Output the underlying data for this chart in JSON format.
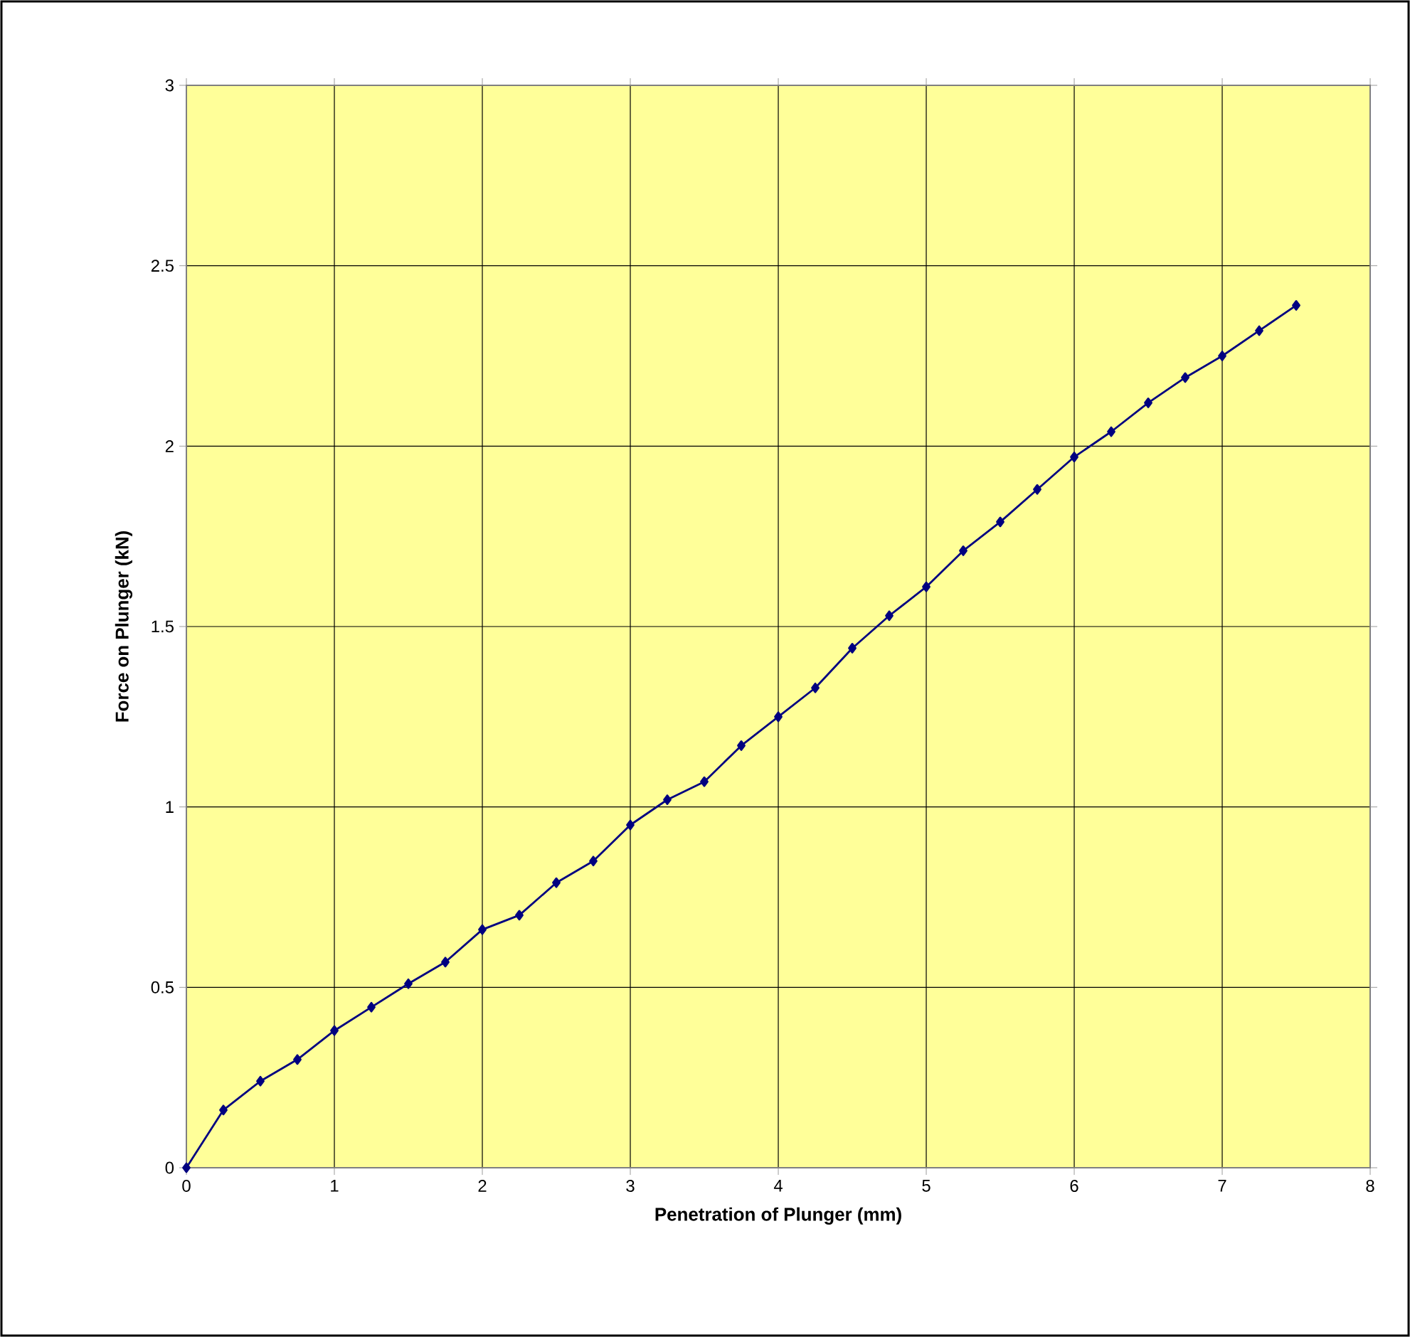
{
  "chart_data": {
    "type": "line",
    "xlabel": "Penetration of Plunger (mm)",
    "ylabel": "Force on Plunger (kN)",
    "x": [
      0,
      0.25,
      0.5,
      0.75,
      1,
      1.25,
      1.5,
      1.75,
      2,
      2.25,
      2.5,
      2.75,
      3,
      3.25,
      3.5,
      3.75,
      4,
      4.25,
      4.5,
      4.75,
      5,
      5.25,
      5.5,
      5.75,
      6,
      6.25,
      6.5,
      6.75,
      7,
      7.25,
      7.5
    ],
    "series": [
      {
        "color": "#000080",
        "values": [
          0,
          0.16,
          0.24,
          0.3,
          0.38,
          0.445,
          0.51,
          0.57,
          0.66,
          0.7,
          0.79,
          0.85,
          0.95,
          1.02,
          1.07,
          1.17,
          1.25,
          1.33,
          1.44,
          1.53,
          1.61,
          1.71,
          1.79,
          1.88,
          1.97,
          2.04,
          2.12,
          2.19,
          2.25,
          2.32,
          2.39
        ]
      }
    ],
    "xlim": [
      0,
      8
    ],
    "ylim": [
      0,
      3
    ],
    "xticks": [
      0,
      1,
      2,
      3,
      4,
      5,
      6,
      7,
      8
    ],
    "yticks": [
      0,
      0.5,
      1,
      1.5,
      2,
      2.5,
      3
    ],
    "grid": true,
    "marker": "diamond",
    "line_style": "solid"
  }
}
